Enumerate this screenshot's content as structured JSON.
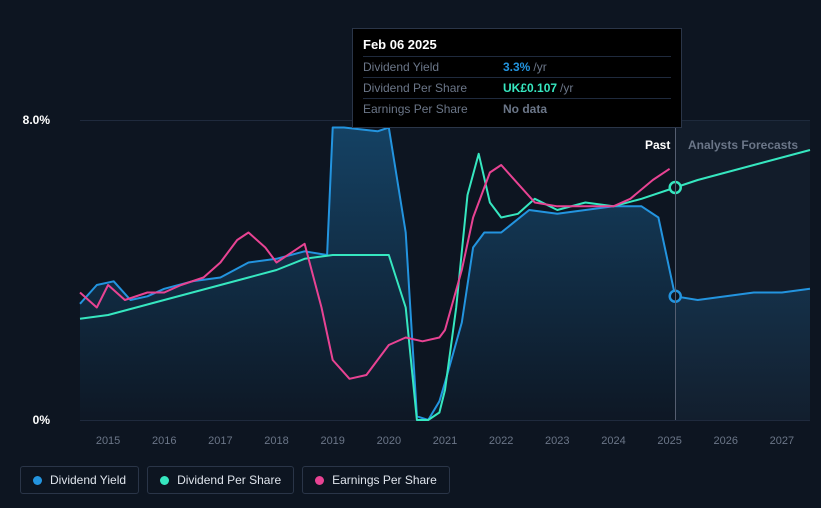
{
  "chart": {
    "type": "line",
    "background_color": "#0d1521",
    "grid_color": "#1f2a3d",
    "axis_text_color": "#6b7688",
    "ylim": [
      0,
      8.0
    ],
    "ymin_pad": -1.0,
    "ytick_labels": {
      "max": "8.0%",
      "min": "0%"
    },
    "x_years": [
      2015,
      2016,
      2017,
      2018,
      2019,
      2020,
      2021,
      2022,
      2023,
      2024,
      2025,
      2026,
      2027
    ],
    "x_start": 2014.5,
    "x_end": 2027.5,
    "divider": {
      "past_label": "Past",
      "forecast_label": "Analysts Forecasts",
      "past_color": "#ffffff",
      "forecast_color": "#6b7688",
      "x": 2025.1
    },
    "hover_x": 2025.1,
    "series": [
      {
        "name": "Dividend Yield",
        "color": "#2394df",
        "fill": true,
        "fill_opacity": 0.22,
        "line_width": 2,
        "points": [
          [
            2014.5,
            3.1
          ],
          [
            2014.8,
            3.6
          ],
          [
            2015.1,
            3.7
          ],
          [
            2015.4,
            3.2
          ],
          [
            2015.7,
            3.3
          ],
          [
            2016.0,
            3.5
          ],
          [
            2016.5,
            3.7
          ],
          [
            2017.0,
            3.8
          ],
          [
            2017.5,
            4.2
          ],
          [
            2018.0,
            4.3
          ],
          [
            2018.5,
            4.5
          ],
          [
            2018.9,
            4.4
          ],
          [
            2019.0,
            7.8
          ],
          [
            2019.2,
            7.8
          ],
          [
            2019.8,
            7.7
          ],
          [
            2020.0,
            7.8
          ],
          [
            2020.3,
            5.0
          ],
          [
            2020.5,
            0.1
          ],
          [
            2020.7,
            0.0
          ],
          [
            2020.9,
            0.5
          ],
          [
            2021.0,
            1.0
          ],
          [
            2021.3,
            2.6
          ],
          [
            2021.5,
            4.6
          ],
          [
            2021.7,
            5.0
          ],
          [
            2022.0,
            5.0
          ],
          [
            2022.5,
            5.6
          ],
          [
            2023.0,
            5.5
          ],
          [
            2023.5,
            5.6
          ],
          [
            2024.0,
            5.7
          ],
          [
            2024.5,
            5.7
          ],
          [
            2024.8,
            5.4
          ],
          [
            2025.1,
            3.3
          ],
          [
            2025.5,
            3.2
          ],
          [
            2026.0,
            3.3
          ],
          [
            2026.5,
            3.4
          ],
          [
            2027.0,
            3.4
          ],
          [
            2027.5,
            3.5
          ]
        ],
        "marker_at": 2025.1
      },
      {
        "name": "Dividend Per Share",
        "color": "#36e7c0",
        "fill": false,
        "line_width": 2,
        "points": [
          [
            2014.5,
            2.7
          ],
          [
            2015.0,
            2.8
          ],
          [
            2015.5,
            3.0
          ],
          [
            2016.0,
            3.2
          ],
          [
            2016.5,
            3.4
          ],
          [
            2017.0,
            3.6
          ],
          [
            2017.5,
            3.8
          ],
          [
            2018.0,
            4.0
          ],
          [
            2018.5,
            4.3
          ],
          [
            2019.0,
            4.4
          ],
          [
            2019.5,
            4.4
          ],
          [
            2020.0,
            4.4
          ],
          [
            2020.3,
            3.0
          ],
          [
            2020.5,
            0.0
          ],
          [
            2020.7,
            0.0
          ],
          [
            2020.9,
            0.2
          ],
          [
            2021.0,
            0.8
          ],
          [
            2021.2,
            3.0
          ],
          [
            2021.4,
            6.0
          ],
          [
            2021.6,
            7.1
          ],
          [
            2021.8,
            5.8
          ],
          [
            2022.0,
            5.4
          ],
          [
            2022.3,
            5.5
          ],
          [
            2022.6,
            5.9
          ],
          [
            2023.0,
            5.6
          ],
          [
            2023.5,
            5.8
          ],
          [
            2024.0,
            5.7
          ],
          [
            2024.5,
            5.9
          ],
          [
            2025.1,
            6.2
          ],
          [
            2025.5,
            6.4
          ],
          [
            2026.0,
            6.6
          ],
          [
            2026.5,
            6.8
          ],
          [
            2027.0,
            7.0
          ],
          [
            2027.5,
            7.2
          ]
        ],
        "marker_at": 2025.1
      },
      {
        "name": "Earnings Per Share",
        "color": "#e84393",
        "fill": false,
        "line_width": 2,
        "points": [
          [
            2014.5,
            3.4
          ],
          [
            2014.8,
            3.0
          ],
          [
            2015.0,
            3.6
          ],
          [
            2015.3,
            3.2
          ],
          [
            2015.7,
            3.4
          ],
          [
            2016.0,
            3.4
          ],
          [
            2016.3,
            3.6
          ],
          [
            2016.7,
            3.8
          ],
          [
            2017.0,
            4.2
          ],
          [
            2017.3,
            4.8
          ],
          [
            2017.5,
            5.0
          ],
          [
            2017.8,
            4.6
          ],
          [
            2018.0,
            4.2
          ],
          [
            2018.3,
            4.5
          ],
          [
            2018.5,
            4.7
          ],
          [
            2018.8,
            3.0
          ],
          [
            2019.0,
            1.6
          ],
          [
            2019.3,
            1.1
          ],
          [
            2019.6,
            1.2
          ],
          [
            2020.0,
            2.0
          ],
          [
            2020.3,
            2.2
          ],
          [
            2020.6,
            2.1
          ],
          [
            2020.9,
            2.2
          ],
          [
            2021.0,
            2.4
          ],
          [
            2021.3,
            4.0
          ],
          [
            2021.5,
            5.4
          ],
          [
            2021.8,
            6.6
          ],
          [
            2022.0,
            6.8
          ],
          [
            2022.3,
            6.3
          ],
          [
            2022.6,
            5.8
          ],
          [
            2023.0,
            5.7
          ],
          [
            2023.5,
            5.7
          ],
          [
            2024.0,
            5.7
          ],
          [
            2024.3,
            5.9
          ],
          [
            2024.7,
            6.4
          ],
          [
            2025.0,
            6.7
          ]
        ]
      }
    ]
  },
  "tooltip": {
    "date": "Feb 06 2025",
    "rows": [
      {
        "label": "Dividend Yield",
        "value": "3.3%",
        "unit": "/yr",
        "color": "#2394df"
      },
      {
        "label": "Dividend Per Share",
        "value": "UK£0.107",
        "unit": "/yr",
        "color": "#36e7c0"
      },
      {
        "label": "Earnings Per Share",
        "value": "No data",
        "unit": "",
        "color": "#6b7688"
      }
    ]
  },
  "legend": {
    "items": [
      {
        "label": "Dividend Yield",
        "color": "#2394df"
      },
      {
        "label": "Dividend Per Share",
        "color": "#36e7c0"
      },
      {
        "label": "Earnings Per Share",
        "color": "#e84393"
      }
    ]
  }
}
